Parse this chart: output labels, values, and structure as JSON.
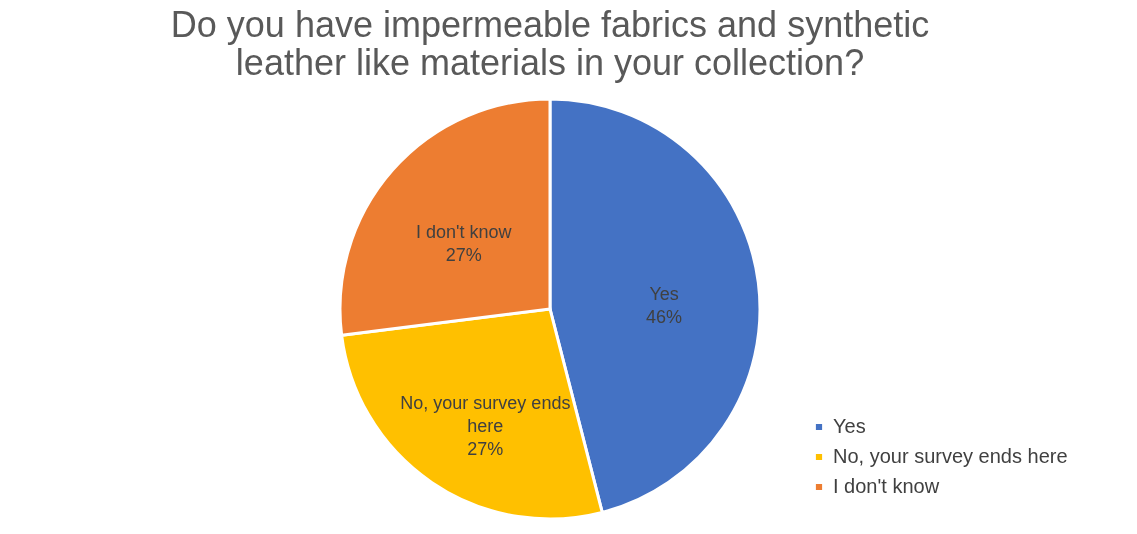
{
  "chart_data": {
    "type": "pie",
    "title": "Do you have impermeable fabrics and synthetic leather like materials in your collection?",
    "categories": [
      "Yes",
      "No, your survey ends here",
      "I don't know"
    ],
    "values": [
      46,
      27,
      27
    ],
    "value_labels": [
      "46%",
      "27%",
      "27%"
    ],
    "colors": [
      "#4472c4",
      "#ffc000",
      "#ed7d31"
    ],
    "legend": "bottom right"
  }
}
